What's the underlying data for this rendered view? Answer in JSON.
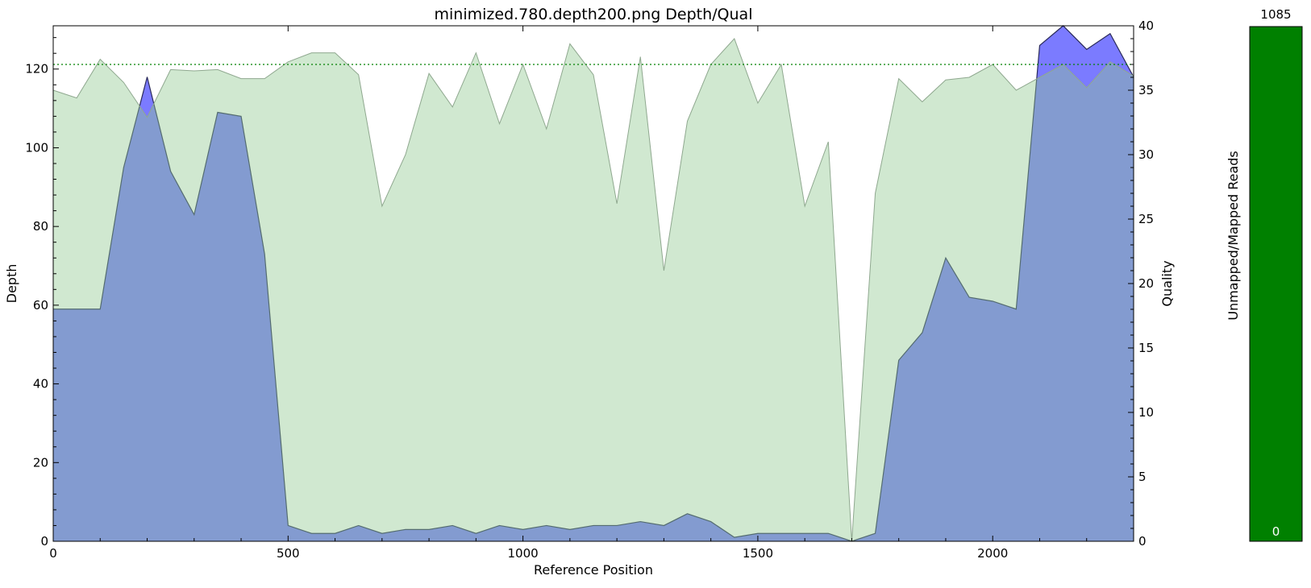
{
  "chart_data": [
    {
      "type": "area",
      "title": "minimized.780.depth200.png Depth/Qual",
      "xlabel": "Reference Position",
      "ylabel": "Depth",
      "y2label": "Quality",
      "xlim": [
        0,
        2300
      ],
      "ylim": [
        0,
        131
      ],
      "y2lim": [
        0,
        40
      ],
      "xticks": [
        0,
        500,
        1000,
        1500,
        2000
      ],
      "yticks": [
        0,
        20,
        40,
        60,
        80,
        100,
        120
      ],
      "y2ticks": [
        0,
        5,
        10,
        15,
        20,
        25,
        30,
        35,
        40
      ],
      "grid": false,
      "threshold_line": {
        "axis": "quality",
        "value": 37,
        "style": "dotted",
        "color": "#008000"
      },
      "x": [
        0,
        50,
        100,
        150,
        200,
        250,
        300,
        350,
        400,
        450,
        500,
        550,
        600,
        650,
        700,
        750,
        800,
        850,
        900,
        950,
        1000,
        1050,
        1100,
        1150,
        1200,
        1250,
        1300,
        1350,
        1400,
        1450,
        1500,
        1550,
        1600,
        1650,
        1700,
        1750,
        1800,
        1850,
        1900,
        1950,
        2000,
        2050,
        2100,
        2150,
        2200,
        2250,
        2300
      ],
      "series": [
        {
          "role": "depth",
          "axis": "left",
          "color": "#7b7bff",
          "values": [
            59,
            59,
            59,
            95,
            118,
            94,
            83,
            109,
            108,
            73,
            4,
            2,
            2,
            4,
            2,
            3,
            3,
            4,
            2,
            4,
            3,
            4,
            3,
            4,
            4,
            5,
            4,
            7,
            5,
            1,
            2,
            2,
            2,
            2,
            0,
            2,
            46,
            53,
            72,
            62,
            61,
            59,
            126,
            131,
            125,
            129,
            118
          ]
        },
        {
          "role": "quality",
          "axis": "right",
          "color": "#8fc98f",
          "values": [
            35,
            34.4,
            37.4,
            35.6,
            32.9,
            36.6,
            36.5,
            36.6,
            35.9,
            35.9,
            37.2,
            37.9,
            37.9,
            36.2,
            26,
            30,
            36.3,
            33.7,
            37.9,
            32.4,
            37,
            32,
            38.6,
            36.2,
            26.2,
            37.6,
            21,
            32.6,
            37,
            39,
            34,
            37,
            26,
            31,
            0,
            27,
            35.9,
            34.1,
            35.8,
            36,
            37,
            35,
            36,
            37,
            35.2,
            37.2,
            36.1
          ]
        }
      ]
    },
    {
      "type": "bar",
      "ylabel": "Unmapped/Mapped Reads",
      "categories": [
        ""
      ],
      "series": [
        {
          "name": "Mapped",
          "color": "#008000",
          "values": [
            1085
          ]
        },
        {
          "name": "Unmapped",
          "color": "#ff0000",
          "values": [
            0
          ]
        }
      ],
      "top_label": "1085",
      "bottom_label": "0"
    }
  ]
}
